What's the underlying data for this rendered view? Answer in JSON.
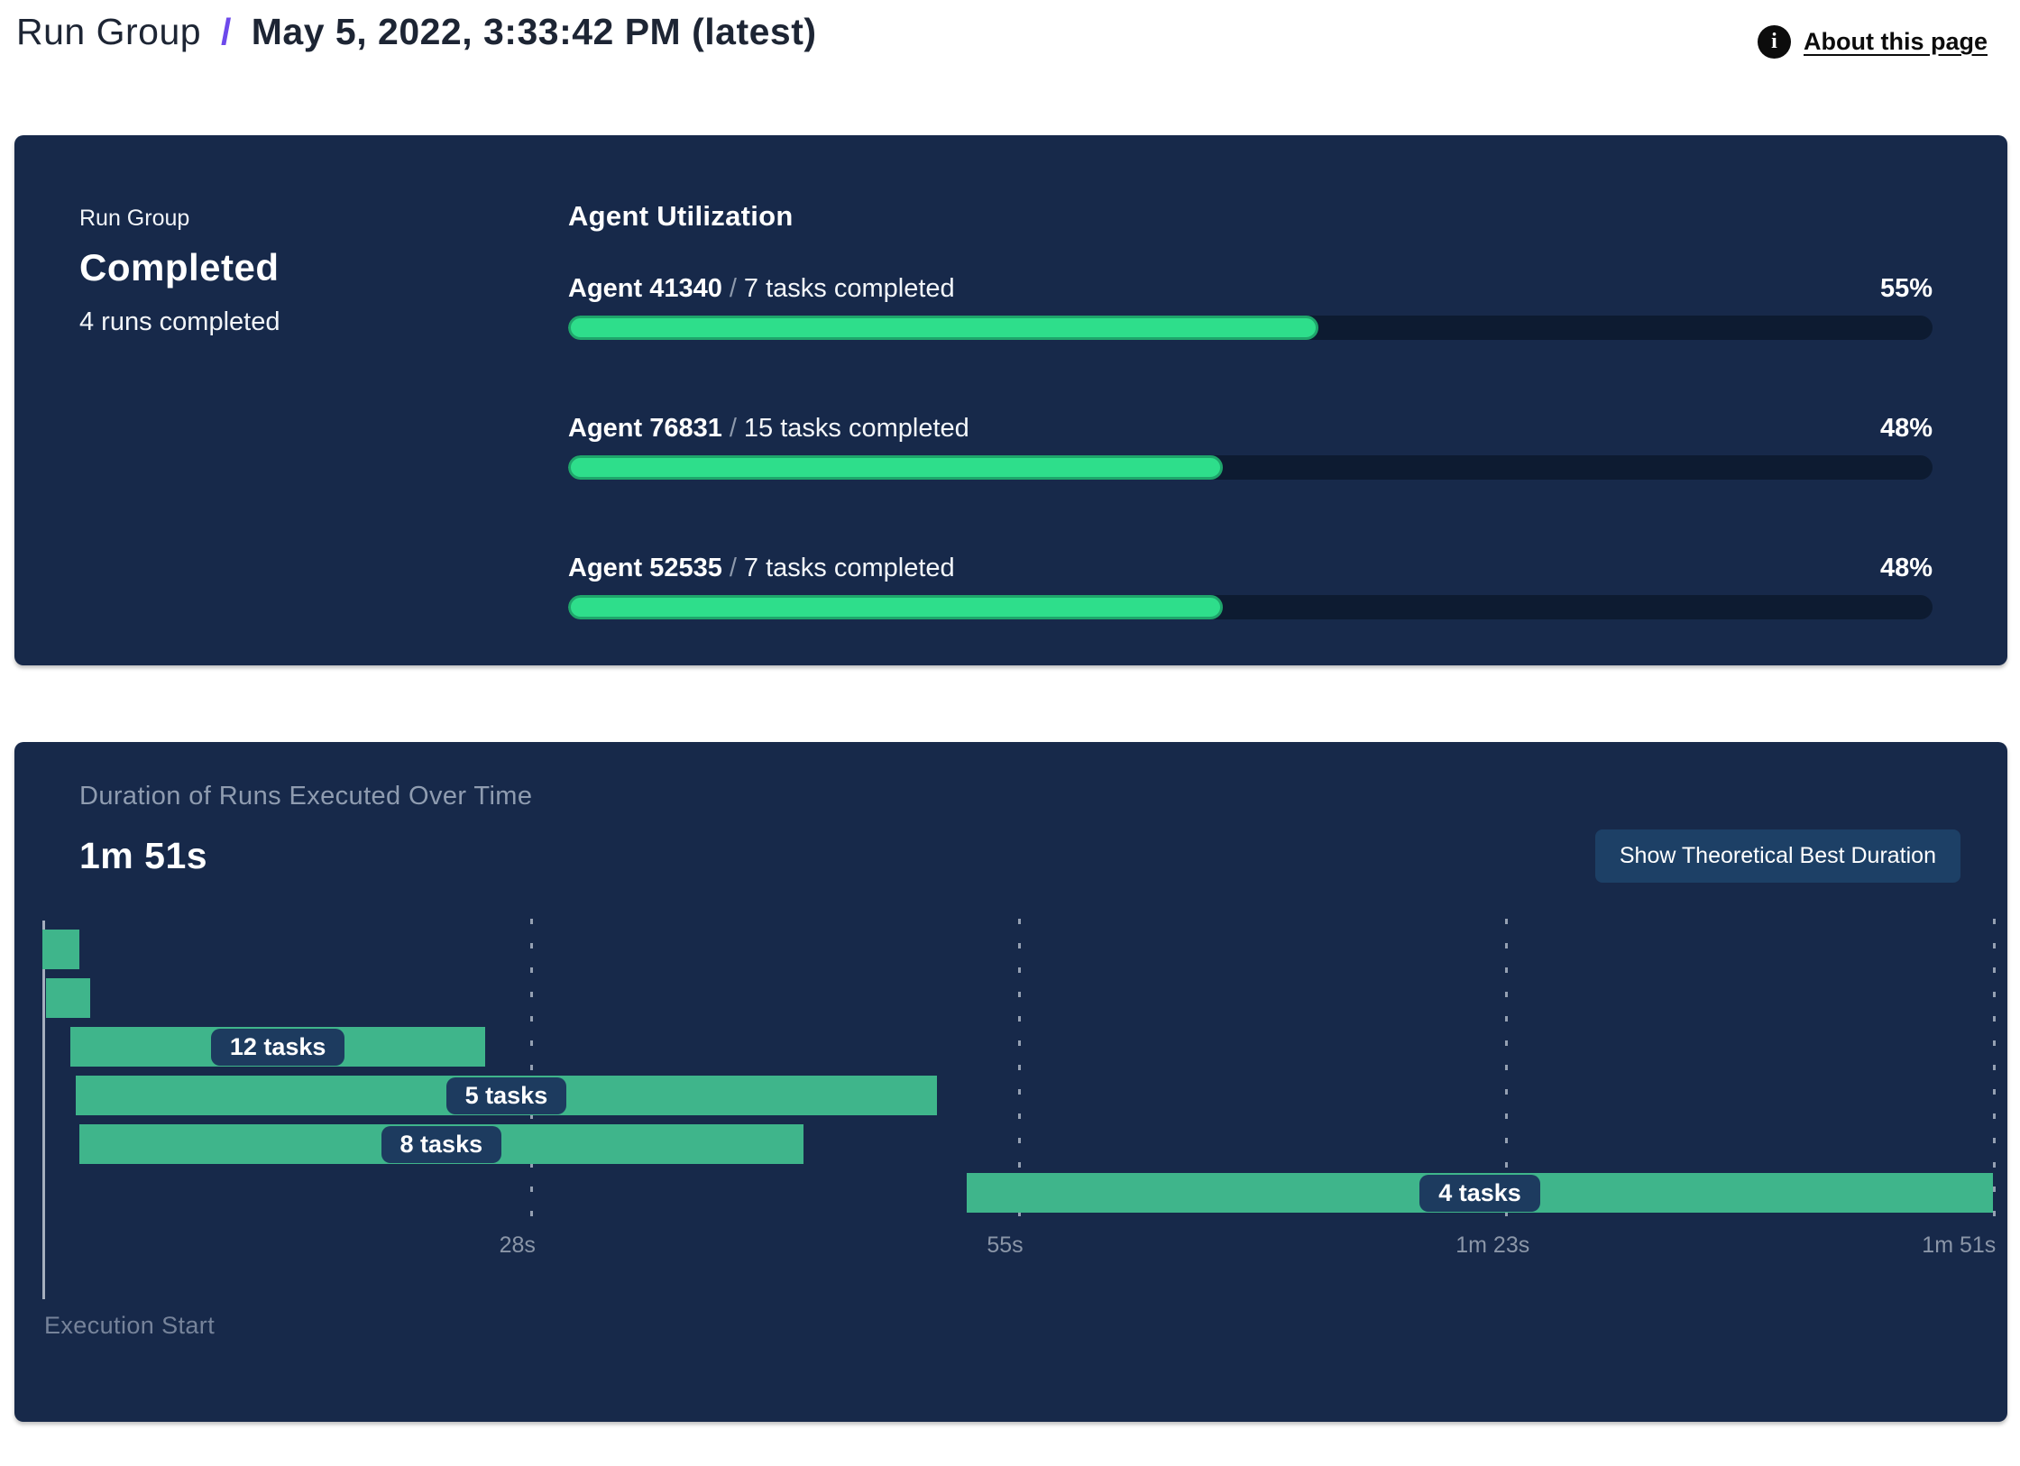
{
  "header": {
    "breadcrumb_root": "Run Group",
    "separator": "/",
    "title": "May 5, 2022, 3:33:42 PM (latest)",
    "about_link": "About this page"
  },
  "status_panel": {
    "eyebrow": "Run Group",
    "status": "Completed",
    "runs_summary": "4 runs completed",
    "utilization_heading": "Agent Utilization",
    "separator": "/",
    "agents": [
      {
        "name": "Agent 41340",
        "tasks": "7 tasks completed",
        "percent": 55
      },
      {
        "name": "Agent 76831",
        "tasks": "15 tasks completed",
        "percent": 48
      },
      {
        "name": "Agent 52535",
        "tasks": "7 tasks completed",
        "percent": 48
      }
    ]
  },
  "duration_panel": {
    "subtitle": "Duration of Runs Executed Over Time",
    "total_duration": "1m 51s",
    "button_label": "Show Theoretical Best Duration",
    "axis_label": "Execution Start"
  },
  "chart_data": {
    "type": "bar",
    "subtype": "gantt-timeline",
    "title": "Duration of Runs Executed Over Time",
    "total_duration_label": "1m 51s",
    "x_unit": "seconds",
    "x_range": [
      0,
      111
    ],
    "grid": "dashed-vertical",
    "ticks": [
      {
        "label": "28s",
        "seconds": 27.75
      },
      {
        "label": "55s",
        "seconds": 55.5
      },
      {
        "label": "1m 23s",
        "seconds": 83.25
      },
      {
        "label": "1m 51s",
        "seconds": 111
      }
    ],
    "runs": [
      {
        "tasks_label": "",
        "start_s": 0,
        "end_s": 2.1
      },
      {
        "tasks_label": "",
        "start_s": 0.2,
        "end_s": 2.7
      },
      {
        "tasks_label": "12 tasks",
        "start_s": 1.6,
        "end_s": 25.2
      },
      {
        "tasks_label": "5 tasks",
        "start_s": 1.9,
        "end_s": 50.9
      },
      {
        "tasks_label": "8 tasks",
        "start_s": 2.1,
        "end_s": 43.3
      },
      {
        "tasks_label": "4 tasks",
        "start_s": 52.6,
        "end_s": 111
      }
    ]
  },
  "colors": {
    "panel_navy": "#17294a",
    "accent_purple": "#6d49eb",
    "progress_green": "#2ede8b",
    "progress_green_border": "#1fa56b",
    "progress_track": "#0d1b31",
    "gantt_green": "#3fb58b",
    "label_pill_navy": "#1d3b5f",
    "button_navy": "#1d4066",
    "muted_text": "#8f9cb0"
  }
}
